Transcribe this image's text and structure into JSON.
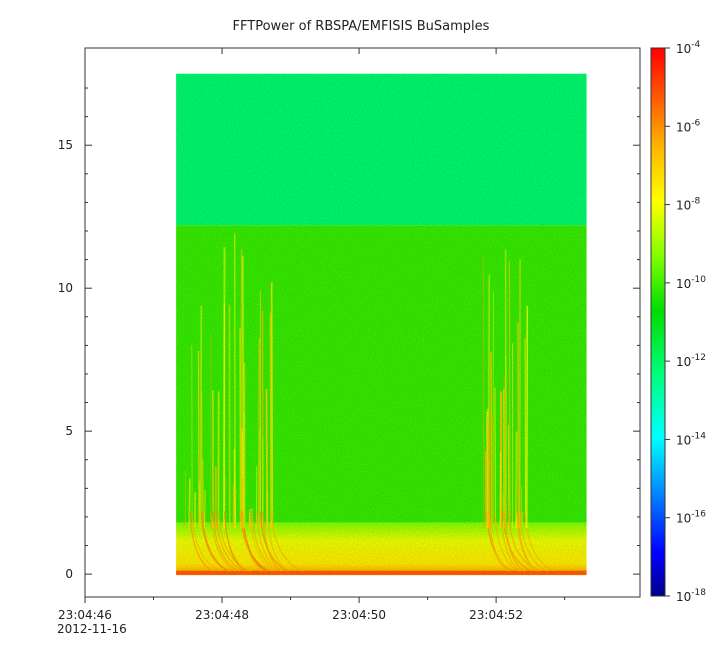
{
  "chart_data": {
    "type": "heatmap",
    "title": "FFTPower of RBSPA/EMFISIS  BuSamples",
    "xlabel": "",
    "ylabel": "",
    "x_start_label": "23:04:46",
    "x_date_label": "2012-11-16",
    "x_ticks": [
      {
        "label": "23:04:46",
        "t": 0
      },
      {
        "label": "23:04:48",
        "t": 2
      },
      {
        "label": "23:04:50",
        "t": 4
      },
      {
        "label": "23:04:52",
        "t": 6
      }
    ],
    "xlim_seconds_from_23_04_46": [
      0,
      8.1
    ],
    "data_time_range_seconds_from_23_04_46": [
      1.33,
      7.32
    ],
    "y_ticks": [
      0,
      5,
      10,
      15
    ],
    "ylim": [
      -0.8,
      18.4
    ],
    "data_frequency_range": [
      0,
      17.5
    ],
    "colorbar": {
      "scale": "log",
      "tick_base": "10",
      "tick_exponents": [
        "-4",
        "-6",
        "-8",
        "-10",
        "-12",
        "-14",
        "-16",
        "-18"
      ],
      "range": [
        "1e-18",
        "1e-4"
      ],
      "palette": [
        "#00008b",
        "#0000ff",
        "#0096ff",
        "#00ffff",
        "#00ff80",
        "#00dd00",
        "#80ff00",
        "#ffff00",
        "#ffb400",
        "#ff5000",
        "#ff0000"
      ]
    },
    "features": {
      "upper_band_bg_log_power": -12.2,
      "upper_band_floor": 12.2,
      "middle_band_bg_log_power": -10.4,
      "lower_band_top": 1.8,
      "chorus_burst_intervals_seconds_from_23_04_46": [
        [
          1.4,
          2.75
        ],
        [
          5.8,
          6.5
        ]
      ]
    }
  }
}
